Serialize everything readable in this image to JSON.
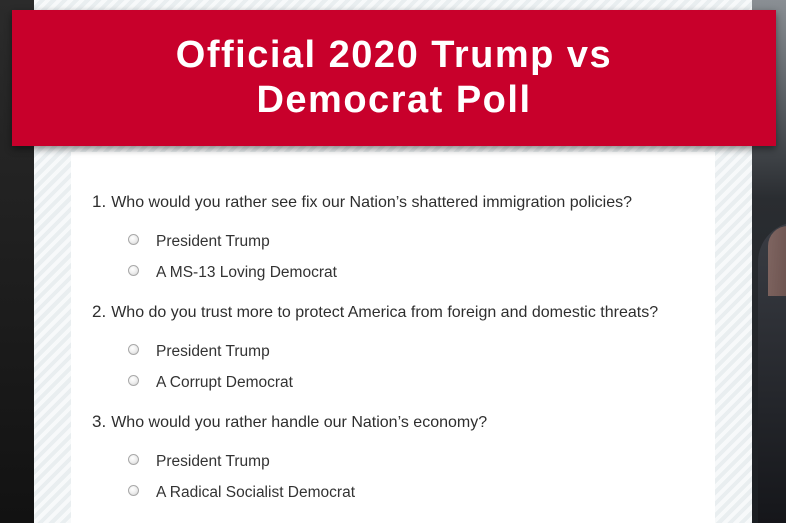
{
  "banner": {
    "title": "Official 2020 Trump vs Democrat Poll"
  },
  "questions": [
    {
      "number": "1.",
      "text": "Who would you rather see fix our Nation’s shattered immigration policies?",
      "options": [
        "President Trump",
        "A MS-13 Loving Democrat"
      ]
    },
    {
      "number": "2.",
      "text": "Who do you trust more to protect America from foreign and domestic threats?",
      "options": [
        "President Trump",
        "A Corrupt Democrat"
      ]
    },
    {
      "number": "3.",
      "text": "Who would you rather handle our Nation’s economy?",
      "options": [
        "President Trump",
        "A Radical Socialist Democrat"
      ]
    }
  ],
  "colors": {
    "banner": "#c8002b",
    "banner_text": "#ffffff",
    "body_text": "#2e2e2e"
  }
}
